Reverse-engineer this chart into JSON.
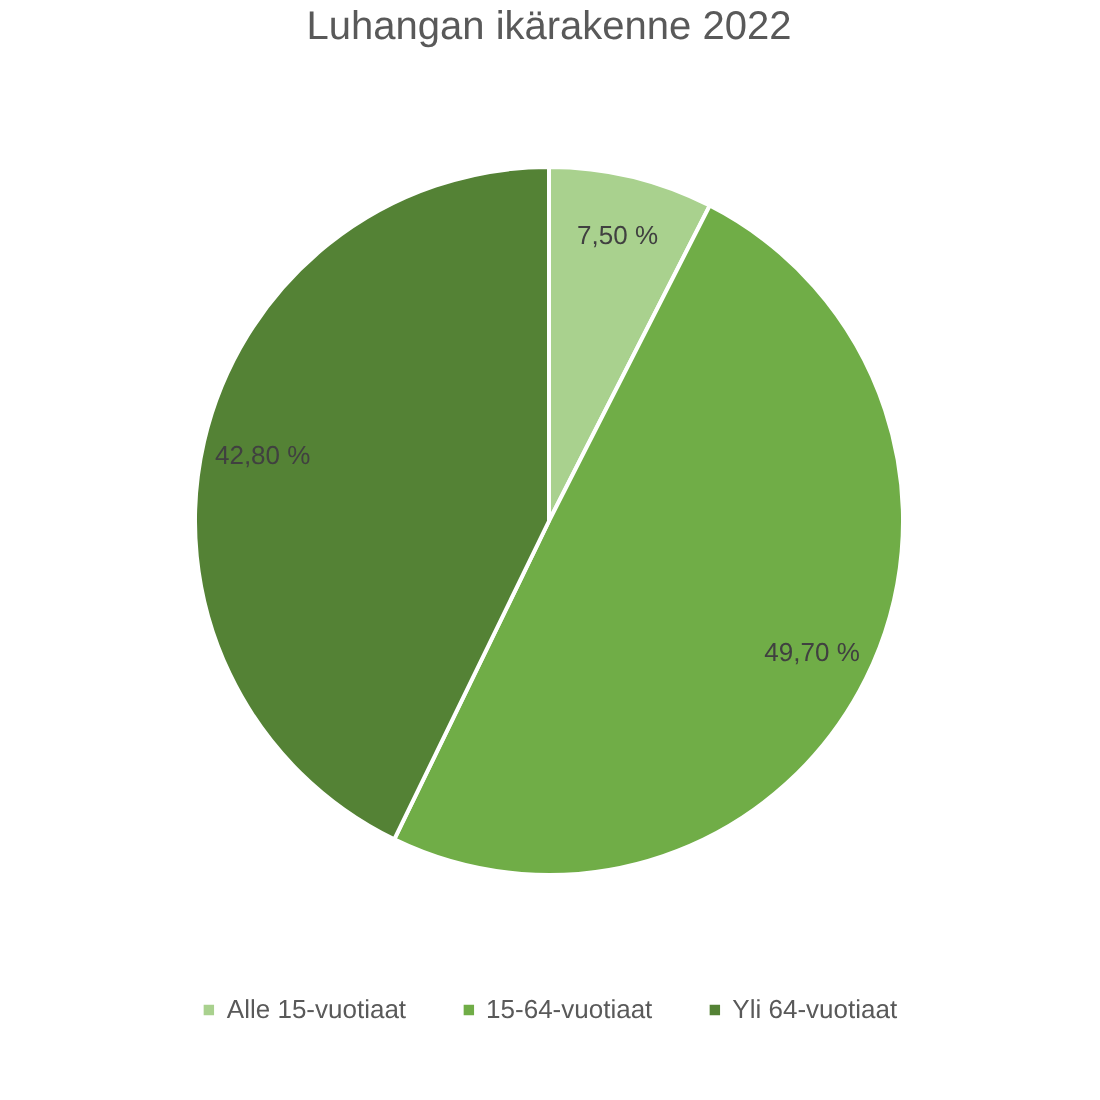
{
  "chart_data": {
    "type": "pie",
    "title": "Luhangan ikärakenne 2022",
    "categories": [
      "Alle 15-vuotiaat",
      "15-64-vuotiaat",
      "Yli 64-vuotiaat"
    ],
    "values": [
      7.5,
      49.7,
      42.8
    ],
    "colors": [
      "#a9d18e",
      "#70ad47",
      "#548235"
    ],
    "value_labels": [
      "7,50 %",
      "49,70 %",
      "42,80 %"
    ],
    "legend": "bottom"
  }
}
